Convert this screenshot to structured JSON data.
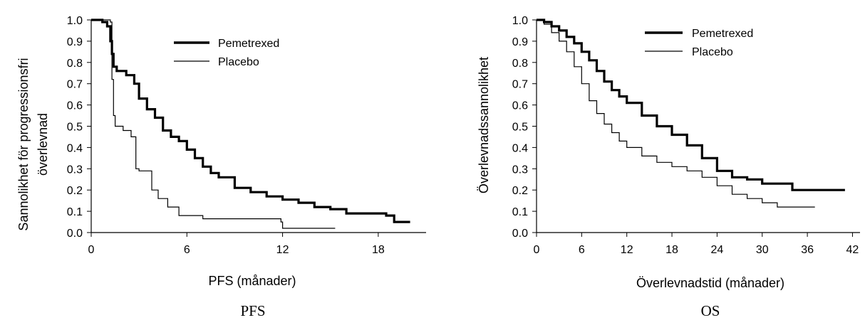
{
  "chart_data": [
    {
      "type": "line",
      "title": "PFS",
      "xlabel": "PFS (månader)",
      "ylabel": [
        "Sannolikhet för progressionsfri",
        "överlevnad"
      ],
      "xlim": [
        0,
        21
      ],
      "ylim": [
        0,
        1.0
      ],
      "xticks": [
        "0",
        "6",
        "12",
        "18"
      ],
      "yticks": [
        "0.0",
        "0.1",
        "0.2",
        "0.3",
        "0.4",
        "0.5",
        "0.6",
        "0.7",
        "0.8",
        "0.9",
        "1.0"
      ],
      "legend": "top-right",
      "grid": false,
      "series": [
        {
          "name": "Pemetrexed",
          "style": "thick",
          "x": [
            0,
            0.7,
            1.0,
            1.2,
            1.3,
            1.4,
            1.6,
            2.2,
            2.7,
            3.0,
            3.5,
            4.0,
            4.5,
            5.0,
            5.5,
            6.0,
            6.5,
            7.0,
            7.5,
            8.0,
            9.0,
            10.0,
            11.0,
            12.0,
            13.0,
            14.0,
            15.0,
            16.0,
            17.0,
            18.0,
            18.5,
            19.0,
            20.0
          ],
          "values": [
            1.0,
            0.99,
            0.97,
            0.9,
            0.84,
            0.78,
            0.76,
            0.74,
            0.7,
            0.63,
            0.58,
            0.54,
            0.48,
            0.45,
            0.43,
            0.39,
            0.35,
            0.31,
            0.28,
            0.26,
            0.21,
            0.19,
            0.17,
            0.155,
            0.14,
            0.12,
            0.11,
            0.09,
            0.09,
            0.09,
            0.08,
            0.05,
            0.05
          ]
        },
        {
          "name": "Placebo",
          "style": "thin",
          "x": [
            0,
            1.2,
            1.3,
            1.4,
            1.5,
            2.0,
            2.5,
            2.8,
            3.0,
            3.8,
            4.2,
            4.8,
            5.5,
            7.0,
            9.0,
            11.9,
            12.0,
            14.0,
            15.3
          ],
          "values": [
            1.0,
            0.99,
            0.72,
            0.55,
            0.5,
            0.48,
            0.45,
            0.3,
            0.29,
            0.2,
            0.16,
            0.12,
            0.08,
            0.065,
            0.065,
            0.05,
            0.02,
            0.02,
            0.02
          ]
        }
      ]
    },
    {
      "type": "line",
      "title": "OS",
      "xlabel": "Överlevnadstid (månader)",
      "ylabel": [
        "Överlevnadssannolikhet"
      ],
      "xlim": [
        0,
        43
      ],
      "ylim": [
        0,
        1.0
      ],
      "xticks": [
        "0",
        "6",
        "12",
        "18",
        "24",
        "30",
        "36",
        "42"
      ],
      "yticks": [
        "0.0",
        "0.1",
        "0.2",
        "0.3",
        "0.4",
        "0.5",
        "0.6",
        "0.7",
        "0.8",
        "0.9",
        "1.0"
      ],
      "legend": "top-right",
      "grid": false,
      "series": [
        {
          "name": "Pemetrexed",
          "style": "thick",
          "x": [
            0,
            1,
            2,
            3,
            4,
            5,
            6,
            7,
            8,
            9,
            10,
            11,
            12,
            14,
            16,
            18,
            20,
            22,
            24,
            26,
            28,
            30,
            32,
            34,
            36,
            38,
            40,
            41
          ],
          "values": [
            1.0,
            0.99,
            0.97,
            0.95,
            0.92,
            0.89,
            0.85,
            0.81,
            0.76,
            0.71,
            0.67,
            0.64,
            0.61,
            0.55,
            0.5,
            0.46,
            0.41,
            0.35,
            0.29,
            0.26,
            0.25,
            0.23,
            0.23,
            0.2,
            0.2,
            0.2,
            0.2,
            0.2
          ]
        },
        {
          "name": "Placebo",
          "style": "thin",
          "x": [
            0,
            1,
            2,
            3,
            4,
            5,
            6,
            7,
            8,
            9,
            10,
            11,
            12,
            14,
            16,
            18,
            20,
            22,
            24,
            26,
            28,
            30,
            32,
            34,
            36,
            37
          ],
          "values": [
            1.0,
            0.98,
            0.94,
            0.9,
            0.85,
            0.78,
            0.7,
            0.62,
            0.56,
            0.51,
            0.47,
            0.43,
            0.4,
            0.36,
            0.33,
            0.31,
            0.29,
            0.26,
            0.22,
            0.18,
            0.16,
            0.14,
            0.12,
            0.12,
            0.12,
            0.12
          ]
        }
      ]
    }
  ]
}
